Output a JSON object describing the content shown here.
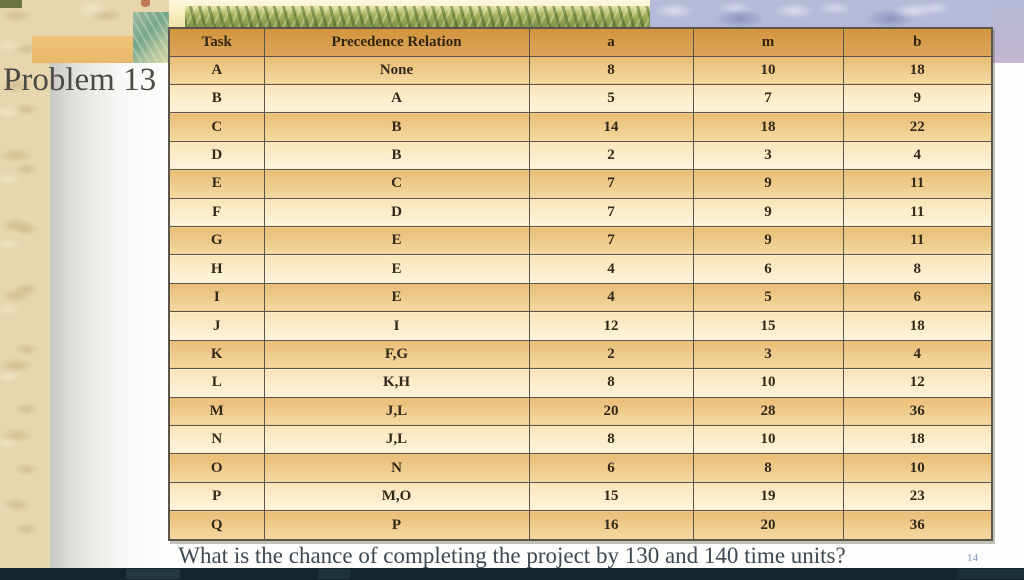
{
  "slide": {
    "title": "Problem 13",
    "question": "What is the chance of completing the project by 130 and 140 time units?",
    "page_number": "14"
  },
  "table": {
    "columns": [
      "Task",
      "Precedence Relation",
      "a",
      "m",
      "b"
    ],
    "column_keys": [
      "task",
      "precedence-relation",
      "a",
      "m",
      "b"
    ],
    "rows": [
      [
        "A",
        "None",
        "8",
        "10",
        "18"
      ],
      [
        "B",
        "A",
        "5",
        "7",
        "9"
      ],
      [
        "C",
        "B",
        "14",
        "18",
        "22"
      ],
      [
        "D",
        "B",
        "2",
        "3",
        "4"
      ],
      [
        "E",
        "C",
        "7",
        "9",
        "11"
      ],
      [
        "F",
        "D",
        "7",
        "9",
        "11"
      ],
      [
        "G",
        "E",
        "7",
        "9",
        "11"
      ],
      [
        "H",
        "E",
        "4",
        "6",
        "8"
      ],
      [
        "I",
        "E",
        "4",
        "5",
        "6"
      ],
      [
        "J",
        "I",
        "12",
        "15",
        "18"
      ],
      [
        "K",
        "F,G",
        "2",
        "3",
        "4"
      ],
      [
        "L",
        "K,H",
        "8",
        "10",
        "12"
      ],
      [
        "M",
        "J,L",
        "20",
        "28",
        "36"
      ],
      [
        "N",
        "J,L",
        "8",
        "10",
        "18"
      ],
      [
        "O",
        "N",
        "6",
        "8",
        "10"
      ],
      [
        "P",
        "M,O",
        "15",
        "19",
        "23"
      ],
      [
        "Q",
        "P",
        "16",
        "20",
        "36"
      ]
    ]
  },
  "colors": {
    "header_bg": "#d79c4d",
    "row_dark": "#ecc27f",
    "row_light": "#fbe9c4",
    "table_border": "#5b564c",
    "parchment": "#e7d6ae",
    "question_text": "#3c4852",
    "page_number_text": "#7c8fc0"
  }
}
